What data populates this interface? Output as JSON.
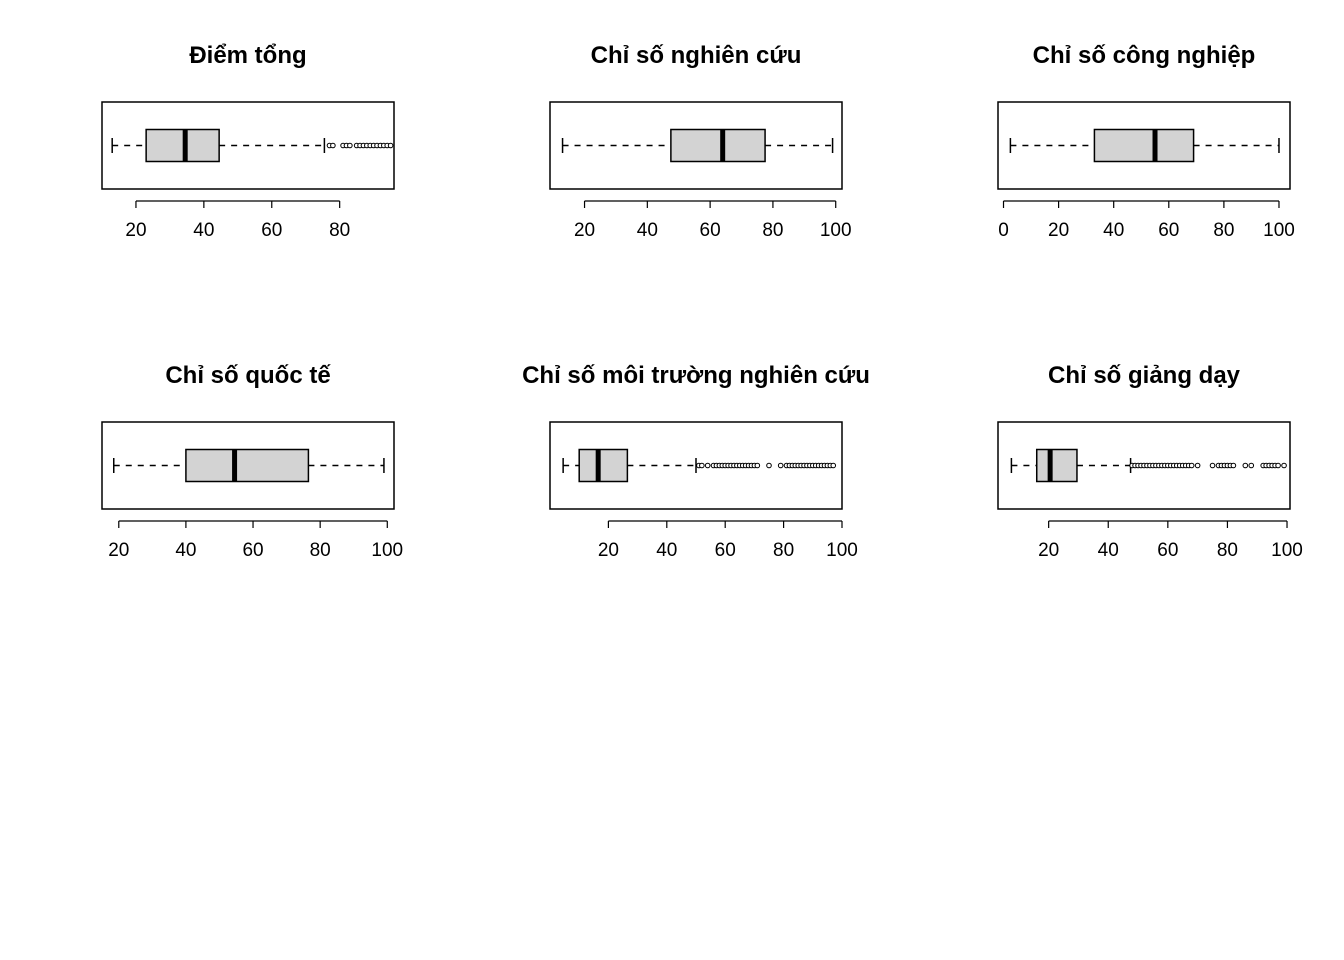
{
  "chart_data": [
    {
      "type": "boxplot",
      "orientation": "horizontal",
      "title": "Điểm tổng",
      "xlim": [
        10,
        96
      ],
      "ticks": [
        20,
        40,
        60,
        80
      ],
      "whisker_low": 13,
      "q1": 23,
      "median": 34.5,
      "q3": 44.5,
      "whisker_high": 75.5,
      "outliers": [
        77,
        78,
        81,
        82,
        83,
        85,
        86,
        87,
        88,
        89,
        90,
        91,
        92,
        93,
        94,
        95
      ]
    },
    {
      "type": "boxplot",
      "orientation": "horizontal",
      "title": "Chỉ số nghiên cứu",
      "xlim": [
        9,
        102
      ],
      "ticks": [
        20,
        40,
        60,
        80,
        100
      ],
      "whisker_low": 13,
      "q1": 47.5,
      "median": 64,
      "q3": 77.5,
      "whisker_high": 99,
      "outliers": []
    },
    {
      "type": "boxplot",
      "orientation": "horizontal",
      "title": "Chỉ số công nghiệp",
      "xlim": [
        -2,
        104
      ],
      "ticks": [
        0,
        20,
        40,
        60,
        80,
        100
      ],
      "whisker_low": 2.5,
      "q1": 33,
      "median": 55,
      "q3": 69,
      "whisker_high": 100,
      "outliers": []
    },
    {
      "type": "boxplot",
      "orientation": "horizontal",
      "title": "Chỉ số quốc tế",
      "xlim": [
        15,
        102
      ],
      "ticks": [
        20,
        40,
        60,
        80,
        100
      ],
      "whisker_low": 18.5,
      "q1": 40,
      "median": 54.5,
      "q3": 76.5,
      "whisker_high": 99,
      "outliers": []
    },
    {
      "type": "boxplot",
      "orientation": "horizontal",
      "title": "Chỉ số môi trường nghiên cứu",
      "xlim": [
        0,
        100
      ],
      "ticks": [
        20,
        40,
        60,
        80,
        100
      ],
      "whisker_low": 4.5,
      "q1": 10,
      "median": 16.5,
      "q3": 26.5,
      "whisker_high": 50,
      "outliers": [
        51,
        52,
        54,
        56,
        57,
        58,
        59,
        60,
        61,
        62,
        63,
        64,
        65,
        66,
        67,
        68,
        69,
        70,
        71,
        75,
        79,
        81,
        82,
        83,
        84,
        85,
        86,
        87,
        88,
        89,
        90,
        91,
        92,
        93,
        94,
        95,
        96,
        97
      ]
    },
    {
      "type": "boxplot",
      "orientation": "horizontal",
      "title": "Chỉ số giảng dạy",
      "xlim": [
        3,
        101
      ],
      "ticks": [
        20,
        40,
        60,
        80,
        100
      ],
      "whisker_low": 7.5,
      "q1": 16,
      "median": 20.5,
      "q3": 29.5,
      "whisker_high": 47.5,
      "outliers": [
        48,
        49,
        50,
        51,
        52,
        53,
        54,
        55,
        56,
        57,
        58,
        59,
        60,
        61,
        62,
        63,
        64,
        65,
        66,
        67,
        68,
        70,
        75,
        77,
        78,
        79,
        80,
        81,
        82,
        86,
        88,
        92,
        93,
        94,
        95,
        96,
        97,
        99
      ]
    }
  ]
}
